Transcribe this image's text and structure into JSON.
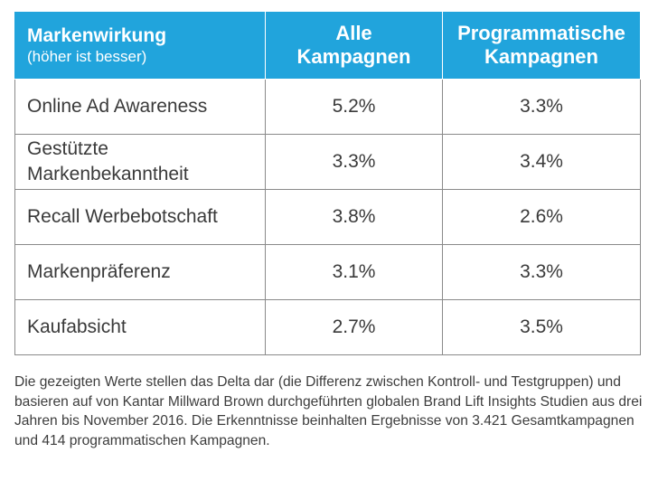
{
  "table": {
    "header": {
      "metric_title": "Markenwirkung",
      "metric_subtitle": "(höher ist besser)",
      "col_all_line1": "Alle",
      "col_all_line2": "Kampagnen",
      "col_prog_line1": "Programmatische",
      "col_prog_line2": "Kampagnen"
    },
    "rows": [
      {
        "label": "Online Ad Awareness",
        "all": "5.2%",
        "programmatic": "3.3%"
      },
      {
        "label": "Gestützte Markenbekanntheit",
        "all": "3.3%",
        "programmatic": "3.4%"
      },
      {
        "label": "Recall Werbebotschaft",
        "all": "3.8%",
        "programmatic": "2.6%"
      },
      {
        "label": "Markenpräferenz",
        "all": "3.1%",
        "programmatic": "3.3%"
      },
      {
        "label": "Kaufabsicht",
        "all": "2.7%",
        "programmatic": "3.5%"
      }
    ],
    "colors": {
      "header_bg": "#21a4dc",
      "header_text": "#ffffff",
      "grid": "#8a8a8a"
    }
  },
  "footnote": "Die gezeigten Werte stellen das Delta dar (die Differenz zwischen Kontroll- und Testgruppen) und basieren auf von Kantar Millward Brown durchgeführten globalen Brand Lift Insights Studien aus drei Jahren bis November 2016. Die Erkenntnisse beinhalten Ergebnisse von 3.421 Gesamtkampagnen und 414 programmatischen Kampagnen."
}
